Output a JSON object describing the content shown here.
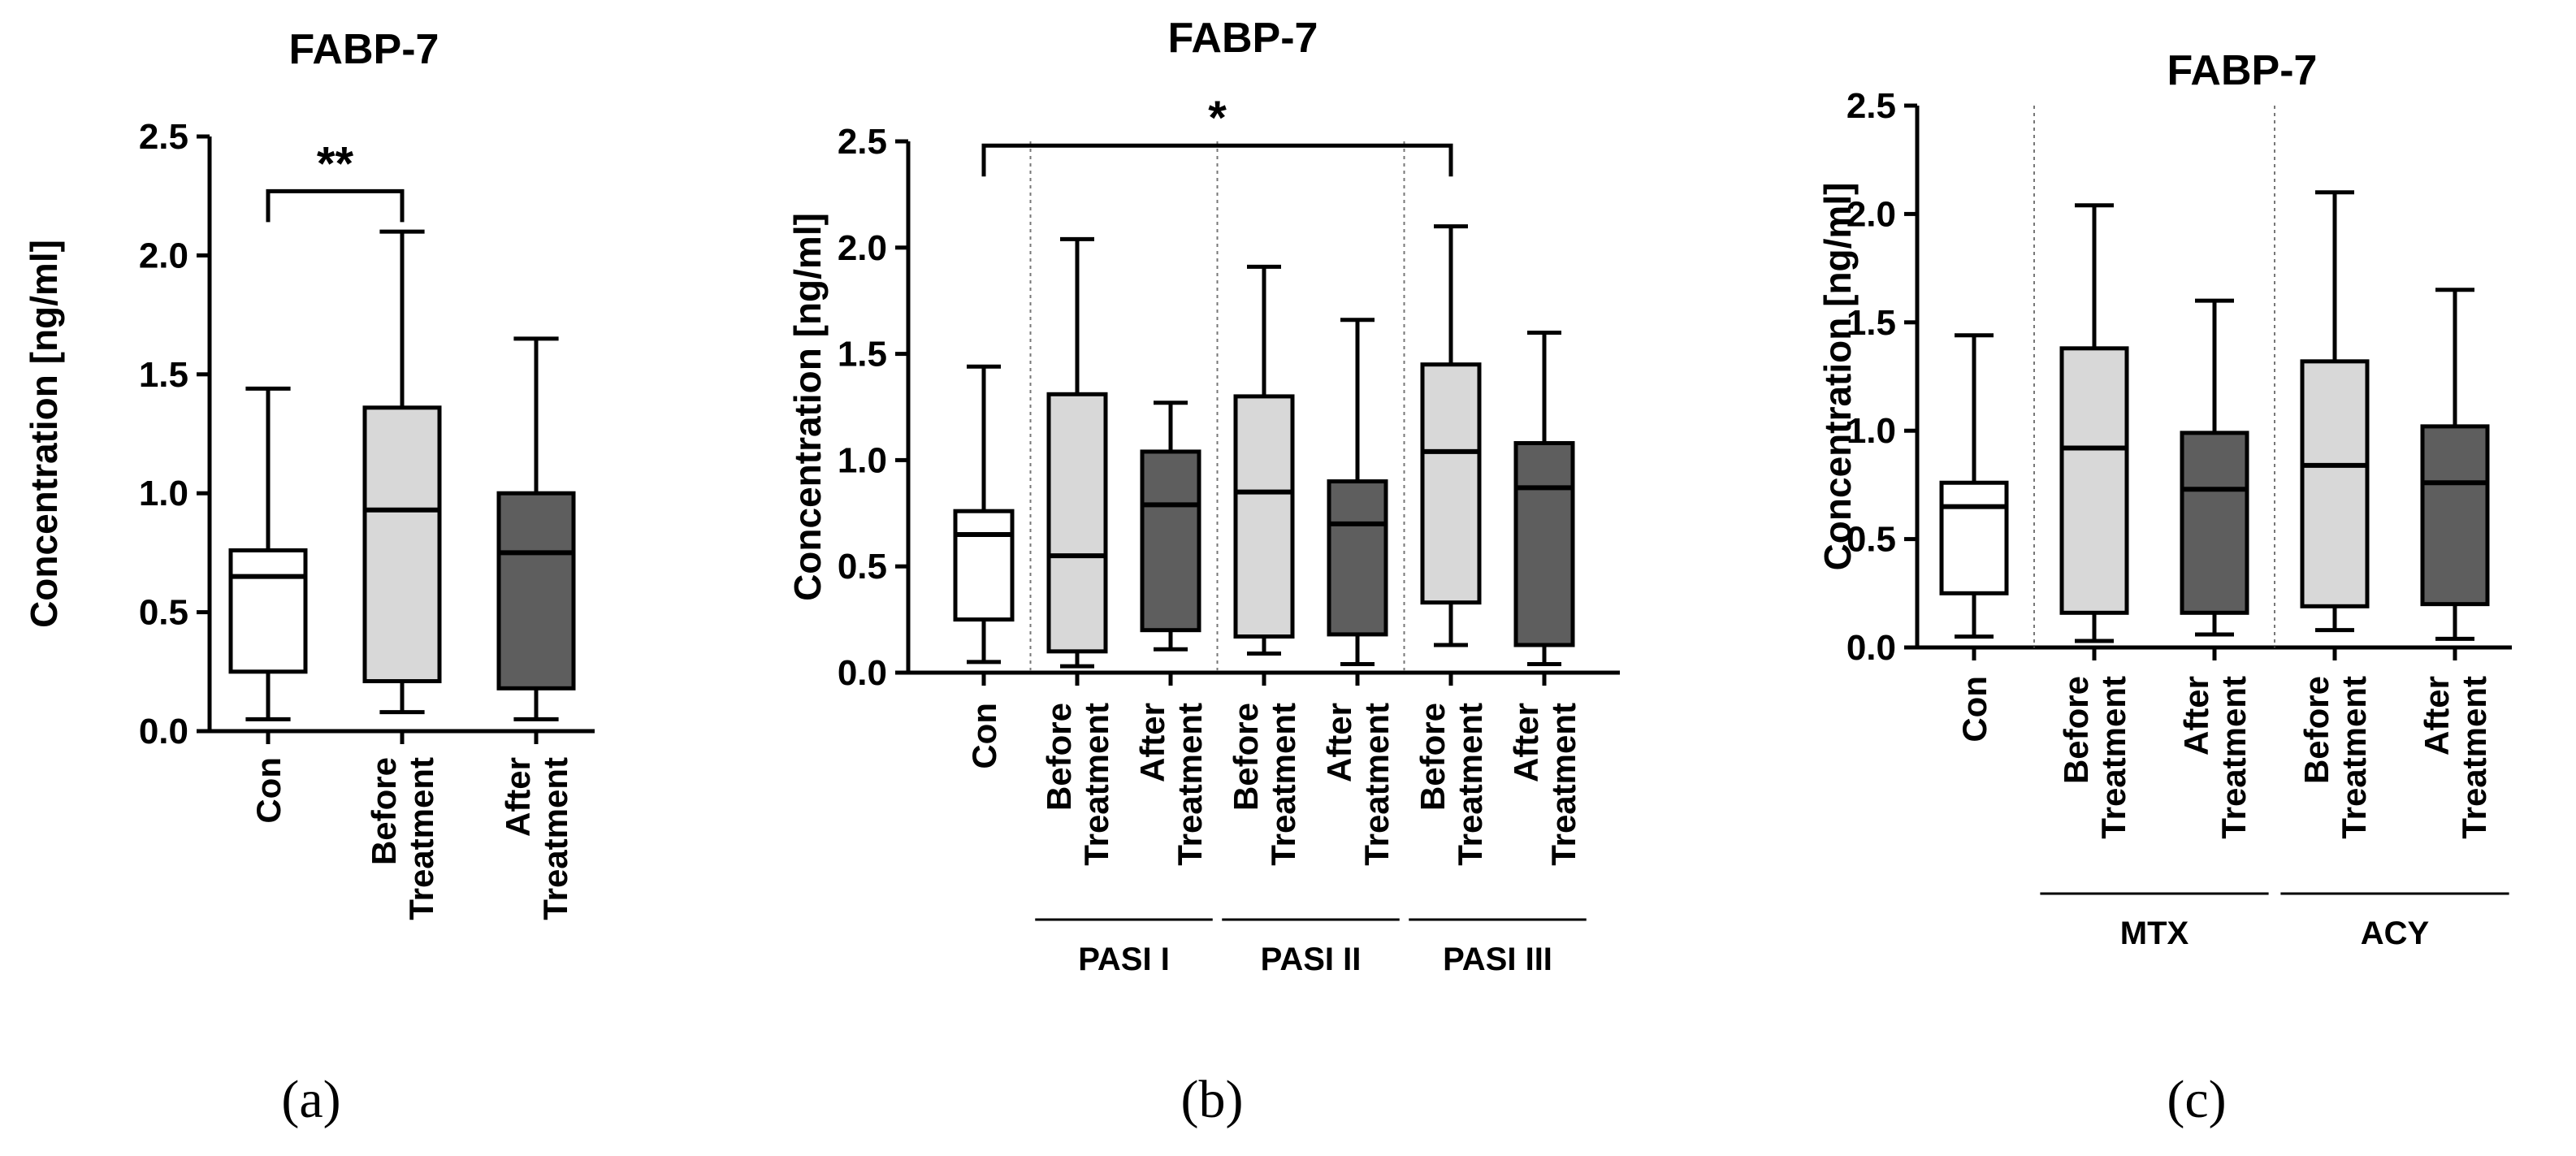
{
  "chart_data": [
    {
      "type": "box",
      "panel_label": "(a)",
      "title": "FABP-7",
      "ylabel": "Concentration [ng/ml]",
      "ylim": [
        0,
        2.5
      ],
      "yticks": [
        "0.0",
        "0.5",
        "1.0",
        "1.5",
        "2.0",
        "2.5"
      ],
      "categories": [
        {
          "lines": [
            "Con"
          ],
          "min": 0.05,
          "q1": 0.25,
          "median": 0.65,
          "q3": 0.76,
          "max": 1.44,
          "fill": "#ffffff"
        },
        {
          "lines": [
            "Before",
            "Treatment"
          ],
          "min": 0.08,
          "q1": 0.21,
          "median": 0.93,
          "q3": 1.36,
          "max": 2.1,
          "fill": "#d8d8d8"
        },
        {
          "lines": [
            "After",
            "Treatment"
          ],
          "min": 0.05,
          "q1": 0.18,
          "median": 0.75,
          "q3": 1.0,
          "max": 1.65,
          "fill": "#5e5e5e"
        }
      ],
      "significance": [
        {
          "from": 0,
          "to": 1,
          "label": "**",
          "y": 2.27
        }
      ],
      "groups": []
    },
    {
      "type": "box",
      "panel_label": "(b)",
      "title": "FABP-7",
      "ylabel": "Concentration [ng/ml]",
      "ylim": [
        0,
        2.5
      ],
      "yticks": [
        "0.0",
        "0.5",
        "1.0",
        "1.5",
        "2.0",
        "2.5"
      ],
      "categories": [
        {
          "lines": [
            "Con"
          ],
          "min": 0.05,
          "q1": 0.25,
          "median": 0.65,
          "q3": 0.76,
          "max": 1.44,
          "fill": "#ffffff"
        },
        {
          "lines": [
            "Before",
            "Treatment"
          ],
          "min": 0.03,
          "q1": 0.1,
          "median": 0.55,
          "q3": 1.31,
          "max": 2.04,
          "fill": "#d8d8d8"
        },
        {
          "lines": [
            "After",
            "Treatment"
          ],
          "min": 0.11,
          "q1": 0.2,
          "median": 0.79,
          "q3": 1.04,
          "max": 1.27,
          "fill": "#5e5e5e"
        },
        {
          "lines": [
            "Before",
            "Treatment"
          ],
          "min": 0.09,
          "q1": 0.17,
          "median": 0.85,
          "q3": 1.3,
          "max": 1.91,
          "fill": "#d8d8d8"
        },
        {
          "lines": [
            "After",
            "Treatment"
          ],
          "min": 0.04,
          "q1": 0.18,
          "median": 0.7,
          "q3": 0.9,
          "max": 1.66,
          "fill": "#5e5e5e"
        },
        {
          "lines": [
            "Before",
            "Treatment"
          ],
          "min": 0.13,
          "q1": 0.33,
          "median": 1.04,
          "q3": 1.45,
          "max": 2.1,
          "fill": "#d8d8d8"
        },
        {
          "lines": [
            "After",
            "Treatment"
          ],
          "min": 0.04,
          "q1": 0.13,
          "median": 0.87,
          "q3": 1.08,
          "max": 1.6,
          "fill": "#5e5e5e"
        }
      ],
      "significance": [
        {
          "from": 0,
          "to": 5,
          "label": "*",
          "y": 2.48
        }
      ],
      "groups": [
        {
          "label": "PASI I",
          "from": 1,
          "to": 2
        },
        {
          "label": "PASI II",
          "from": 3,
          "to": 4
        },
        {
          "label": "PASI III",
          "from": 5,
          "to": 6
        }
      ]
    },
    {
      "type": "box",
      "panel_label": "(c)",
      "title": "FABP-7",
      "ylabel": "Concentration [ng/ml]",
      "ylim": [
        0,
        2.5
      ],
      "yticks": [
        "0.0",
        "0.5",
        "1.0",
        "1.5",
        "2.0",
        "2.5"
      ],
      "categories": [
        {
          "lines": [
            "Con"
          ],
          "min": 0.05,
          "q1": 0.25,
          "median": 0.65,
          "q3": 0.76,
          "max": 1.44,
          "fill": "#ffffff"
        },
        {
          "lines": [
            "Before",
            "Treatment"
          ],
          "min": 0.03,
          "q1": 0.16,
          "median": 0.92,
          "q3": 1.38,
          "max": 2.04,
          "fill": "#d8d8d8"
        },
        {
          "lines": [
            "After",
            "Treatment"
          ],
          "min": 0.06,
          "q1": 0.16,
          "median": 0.73,
          "q3": 0.99,
          "max": 1.6,
          "fill": "#5e5e5e"
        },
        {
          "lines": [
            "Before",
            "Treatment"
          ],
          "min": 0.08,
          "q1": 0.19,
          "median": 0.84,
          "q3": 1.32,
          "max": 2.1,
          "fill": "#d8d8d8"
        },
        {
          "lines": [
            "After",
            "Treatment"
          ],
          "min": 0.04,
          "q1": 0.2,
          "median": 0.76,
          "q3": 1.02,
          "max": 1.65,
          "fill": "#5e5e5e"
        }
      ],
      "significance": [],
      "groups": [
        {
          "label": "MTX",
          "from": 1,
          "to": 2
        },
        {
          "label": "ACY",
          "from": 3,
          "to": 4
        }
      ]
    }
  ]
}
